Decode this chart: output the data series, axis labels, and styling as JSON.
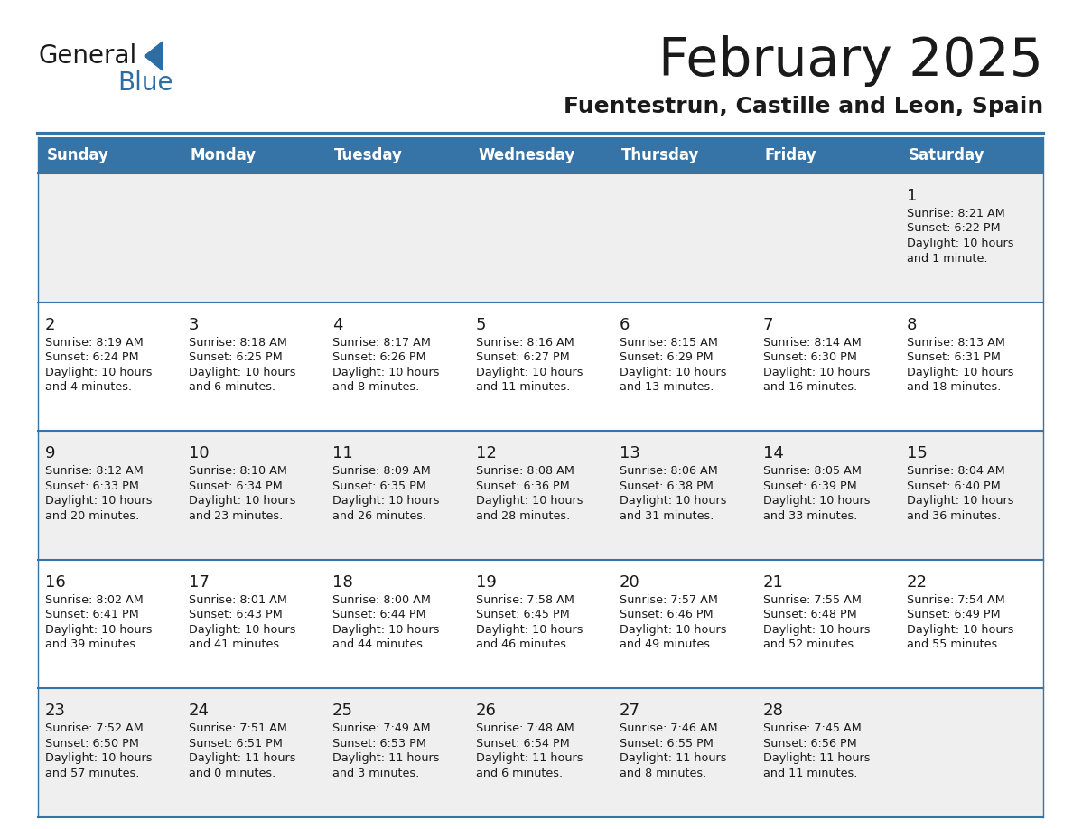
{
  "title": "February 2025",
  "subtitle": "Fuentestrun, Castille and Leon, Spain",
  "header_bg": "#3674A8",
  "header_text_color": "#FFFFFF",
  "cell_bg_odd": "#EFEFEF",
  "cell_bg_even": "#FFFFFF",
  "grid_line_color": "#3674A8",
  "day_headers": [
    "Sunday",
    "Monday",
    "Tuesday",
    "Wednesday",
    "Thursday",
    "Friday",
    "Saturday"
  ],
  "calendar_data": [
    [
      null,
      null,
      null,
      null,
      null,
      null,
      {
        "day": 1,
        "sunrise": "8:21 AM",
        "sunset": "6:22 PM",
        "daylight": "10 hours\nand 1 minute."
      }
    ],
    [
      {
        "day": 2,
        "sunrise": "8:19 AM",
        "sunset": "6:24 PM",
        "daylight": "10 hours\nand 4 minutes."
      },
      {
        "day": 3,
        "sunrise": "8:18 AM",
        "sunset": "6:25 PM",
        "daylight": "10 hours\nand 6 minutes."
      },
      {
        "day": 4,
        "sunrise": "8:17 AM",
        "sunset": "6:26 PM",
        "daylight": "10 hours\nand 8 minutes."
      },
      {
        "day": 5,
        "sunrise": "8:16 AM",
        "sunset": "6:27 PM",
        "daylight": "10 hours\nand 11 minutes."
      },
      {
        "day": 6,
        "sunrise": "8:15 AM",
        "sunset": "6:29 PM",
        "daylight": "10 hours\nand 13 minutes."
      },
      {
        "day": 7,
        "sunrise": "8:14 AM",
        "sunset": "6:30 PM",
        "daylight": "10 hours\nand 16 minutes."
      },
      {
        "day": 8,
        "sunrise": "8:13 AM",
        "sunset": "6:31 PM",
        "daylight": "10 hours\nand 18 minutes."
      }
    ],
    [
      {
        "day": 9,
        "sunrise": "8:12 AM",
        "sunset": "6:33 PM",
        "daylight": "10 hours\nand 20 minutes."
      },
      {
        "day": 10,
        "sunrise": "8:10 AM",
        "sunset": "6:34 PM",
        "daylight": "10 hours\nand 23 minutes."
      },
      {
        "day": 11,
        "sunrise": "8:09 AM",
        "sunset": "6:35 PM",
        "daylight": "10 hours\nand 26 minutes."
      },
      {
        "day": 12,
        "sunrise": "8:08 AM",
        "sunset": "6:36 PM",
        "daylight": "10 hours\nand 28 minutes."
      },
      {
        "day": 13,
        "sunrise": "8:06 AM",
        "sunset": "6:38 PM",
        "daylight": "10 hours\nand 31 minutes."
      },
      {
        "day": 14,
        "sunrise": "8:05 AM",
        "sunset": "6:39 PM",
        "daylight": "10 hours\nand 33 minutes."
      },
      {
        "day": 15,
        "sunrise": "8:04 AM",
        "sunset": "6:40 PM",
        "daylight": "10 hours\nand 36 minutes."
      }
    ],
    [
      {
        "day": 16,
        "sunrise": "8:02 AM",
        "sunset": "6:41 PM",
        "daylight": "10 hours\nand 39 minutes."
      },
      {
        "day": 17,
        "sunrise": "8:01 AM",
        "sunset": "6:43 PM",
        "daylight": "10 hours\nand 41 minutes."
      },
      {
        "day": 18,
        "sunrise": "8:00 AM",
        "sunset": "6:44 PM",
        "daylight": "10 hours\nand 44 minutes."
      },
      {
        "day": 19,
        "sunrise": "7:58 AM",
        "sunset": "6:45 PM",
        "daylight": "10 hours\nand 46 minutes."
      },
      {
        "day": 20,
        "sunrise": "7:57 AM",
        "sunset": "6:46 PM",
        "daylight": "10 hours\nand 49 minutes."
      },
      {
        "day": 21,
        "sunrise": "7:55 AM",
        "sunset": "6:48 PM",
        "daylight": "10 hours\nand 52 minutes."
      },
      {
        "day": 22,
        "sunrise": "7:54 AM",
        "sunset": "6:49 PM",
        "daylight": "10 hours\nand 55 minutes."
      }
    ],
    [
      {
        "day": 23,
        "sunrise": "7:52 AM",
        "sunset": "6:50 PM",
        "daylight": "10 hours\nand 57 minutes."
      },
      {
        "day": 24,
        "sunrise": "7:51 AM",
        "sunset": "6:51 PM",
        "daylight": "11 hours\nand 0 minutes."
      },
      {
        "day": 25,
        "sunrise": "7:49 AM",
        "sunset": "6:53 PM",
        "daylight": "11 hours\nand 3 minutes."
      },
      {
        "day": 26,
        "sunrise": "7:48 AM",
        "sunset": "6:54 PM",
        "daylight": "11 hours\nand 6 minutes."
      },
      {
        "day": 27,
        "sunrise": "7:46 AM",
        "sunset": "6:55 PM",
        "daylight": "11 hours\nand 8 minutes."
      },
      {
        "day": 28,
        "sunrise": "7:45 AM",
        "sunset": "6:56 PM",
        "daylight": "11 hours\nand 11 minutes."
      },
      null
    ]
  ],
  "figsize": [
    11.88,
    9.18
  ],
  "dpi": 100
}
